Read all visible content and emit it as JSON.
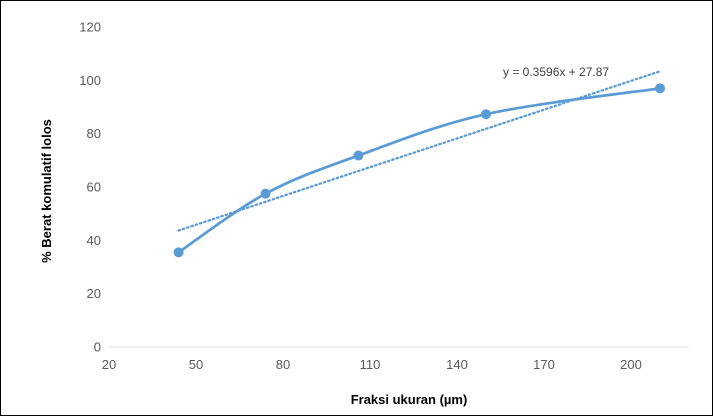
{
  "chart_data": {
    "type": "scatter",
    "title": "",
    "xlabel": "Fraksi ukuran (µm)",
    "ylabel": "% Berat komulatif lolos",
    "xlim": [
      20,
      220
    ],
    "ylim": [
      0,
      120
    ],
    "x_ticks": [
      20,
      50,
      80,
      110,
      140,
      170,
      200
    ],
    "y_ticks": [
      0,
      20,
      40,
      60,
      80,
      100,
      120
    ],
    "grid": false,
    "legend": "none",
    "series": [
      {
        "x": [
          44,
          74,
          106,
          150,
          210
        ],
        "y": [
          35.5,
          57.5,
          71.8,
          87.3,
          97.0
        ],
        "line_style": "smooth",
        "color": "#5b9bd5"
      }
    ],
    "trendline": {
      "type": "linear",
      "slope": 0.3596,
      "intercept": 27.87,
      "x_range": [
        44,
        210
      ],
      "equation": "y = 0.3596x + 27.87",
      "style": "dotted",
      "color": "#5b9bd5"
    }
  }
}
